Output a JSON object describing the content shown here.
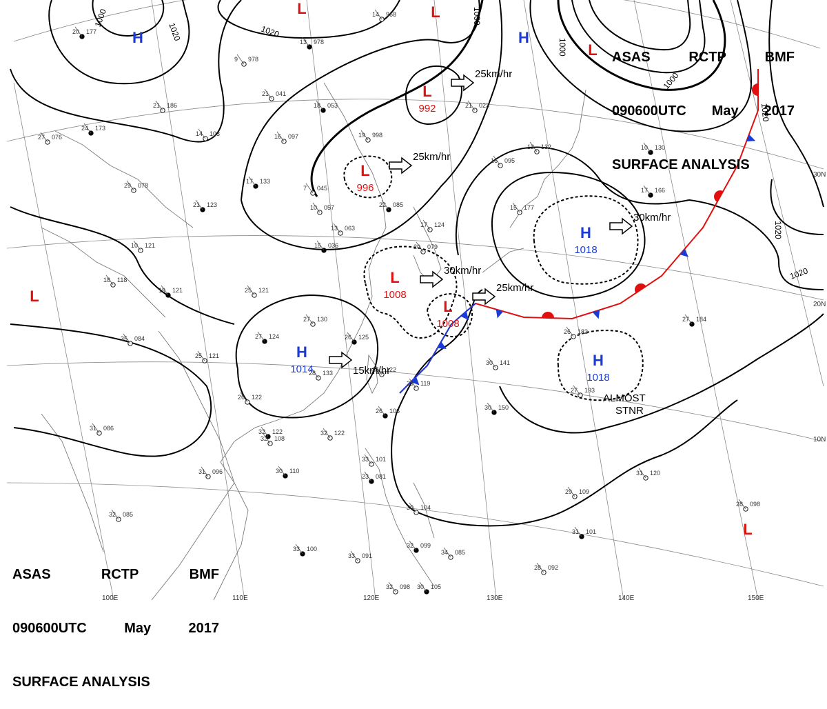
{
  "header": {
    "words": [
      "ASAS",
      "RCTP",
      "BMF"
    ],
    "date_words": [
      "090600UTC",
      "May",
      "2017"
    ],
    "title": "SURFACE ANALYSIS"
  },
  "lat_labels": [
    "30N",
    "20N",
    "10N"
  ],
  "lon_labels": [
    "100E",
    "110E",
    "120E",
    "130E",
    "140E",
    "150E"
  ],
  "isobar_labels": [
    "1000",
    "1020",
    "1020",
    "1000",
    "1000",
    "1000",
    "1020",
    "1020",
    "1020"
  ],
  "systems": [
    {
      "type": "H",
      "pressure": "",
      "color": "#1a3cd6"
    },
    {
      "type": "L",
      "pressure": "",
      "color": "#e01010"
    },
    {
      "type": "L",
      "pressure": "",
      "color": "#e01010"
    },
    {
      "type": "L",
      "pressure": "992",
      "color": "#e01010"
    },
    {
      "type": "L",
      "pressure": "996",
      "color": "#e01010"
    },
    {
      "type": "H",
      "pressure": "",
      "color": "#1a3cd6"
    },
    {
      "type": "L",
      "pressure": "",
      "color": "#e01010"
    },
    {
      "type": "H",
      "pressure": "1018",
      "color": "#1a3cd6"
    },
    {
      "type": "L",
      "pressure": "1008",
      "color": "#e01010"
    },
    {
      "type": "L",
      "pressure": "1008",
      "color": "#e01010"
    },
    {
      "type": "H",
      "pressure": "1014",
      "color": "#1a3cd6"
    },
    {
      "type": "H",
      "pressure": "1018",
      "color": "#1a3cd6"
    },
    {
      "type": "L",
      "pressure": "",
      "color": "#e01010"
    },
    {
      "type": "L",
      "pressure": "",
      "color": "#e01010"
    }
  ],
  "motion_labels": [
    "25km/hr",
    "25km/hr",
    "30km/hr",
    "30km/hr",
    "25km/hr",
    "15km/hr"
  ],
  "annotation": [
    "ALMOST",
    "STNR"
  ],
  "front": {
    "warm_color": "#e01010",
    "cold_color": "#1a3cd6"
  },
  "station_values": [
    {
      "t": "20",
      "p": "177"
    },
    {
      "t": "21",
      "p": "186"
    },
    {
      "t": "14",
      "p": "103"
    },
    {
      "t": "24",
      "p": "173"
    },
    {
      "t": "27",
      "p": "076"
    },
    {
      "t": "29",
      "p": "078"
    },
    {
      "t": "21",
      "p": "123"
    },
    {
      "t": "10",
      "p": "121"
    },
    {
      "t": "18",
      "p": "118"
    },
    {
      "t": "19",
      "p": "121"
    },
    {
      "t": "25",
      "p": "121"
    },
    {
      "t": "35",
      "p": "084"
    },
    {
      "t": "27",
      "p": "124"
    },
    {
      "t": "25",
      "p": "121"
    },
    {
      "t": "26",
      "p": "122"
    },
    {
      "t": "32",
      "p": "122"
    },
    {
      "t": "32",
      "p": "108"
    },
    {
      "t": "31",
      "p": "096"
    },
    {
      "t": "30",
      "p": "110"
    },
    {
      "t": "31",
      "p": "086"
    },
    {
      "t": "32",
      "p": "085"
    },
    {
      "t": "33",
      "p": "100"
    },
    {
      "t": "27",
      "p": "130"
    },
    {
      "t": "28",
      "p": "133"
    },
    {
      "t": "26",
      "p": "125"
    },
    {
      "t": "26",
      "p": "122"
    },
    {
      "t": "29",
      "p": "119"
    },
    {
      "t": "26",
      "p": "106"
    },
    {
      "t": "32",
      "p": "122"
    },
    {
      "t": "30",
      "p": "141"
    },
    {
      "t": "30",
      "p": "150"
    },
    {
      "t": "31",
      "p": "120"
    },
    {
      "t": "29",
      "p": "109"
    },
    {
      "t": "31",
      "p": "101"
    },
    {
      "t": "28",
      "p": "092"
    },
    {
      "t": "28",
      "p": "098"
    },
    {
      "t": "27",
      "p": "184"
    },
    {
      "t": "26",
      "p": "182"
    },
    {
      "t": "27",
      "p": "193"
    },
    {
      "t": "17",
      "p": "166"
    },
    {
      "t": "15",
      "p": "177"
    },
    {
      "t": "13",
      "p": "132"
    },
    {
      "t": "10",
      "p": "130"
    },
    {
      "t": "16",
      "p": "095"
    },
    {
      "t": "21",
      "p": "023"
    },
    {
      "t": "18",
      "p": "053"
    },
    {
      "t": "21",
      "p": "041"
    },
    {
      "t": "9",
      "p": "978"
    },
    {
      "t": "13",
      "p": "978"
    },
    {
      "t": "14",
      "p": "968"
    },
    {
      "t": "16",
      "p": "097"
    },
    {
      "t": "17",
      "p": "133"
    },
    {
      "t": "7",
      "p": "045"
    },
    {
      "t": "10",
      "p": "057"
    },
    {
      "t": "15",
      "p": "036"
    },
    {
      "t": "13",
      "p": "063"
    },
    {
      "t": "19",
      "p": "998"
    },
    {
      "t": "22",
      "p": "085"
    },
    {
      "t": "17",
      "p": "124"
    },
    {
      "t": "20",
      "p": "079"
    },
    {
      "t": "23",
      "p": "081"
    },
    {
      "t": "33",
      "p": "101"
    },
    {
      "t": "30",
      "p": "104"
    },
    {
      "t": "32",
      "p": "099"
    },
    {
      "t": "33",
      "p": "091"
    },
    {
      "t": "32",
      "p": "098"
    },
    {
      "t": "30",
      "p": "105"
    },
    {
      "t": "34",
      "p": "085"
    }
  ]
}
